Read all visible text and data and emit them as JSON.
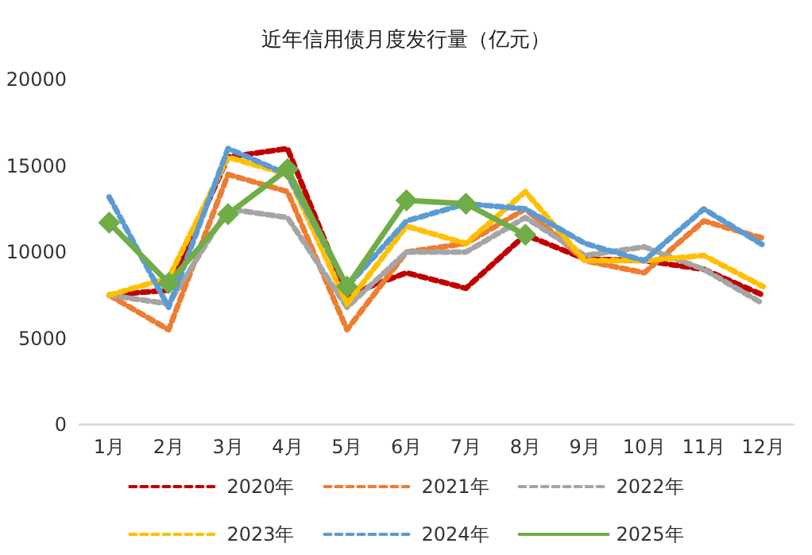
{
  "chart_data": {
    "type": "line",
    "title": "近年信用债月度发行量（亿元）",
    "categories": [
      "1月",
      "2月",
      "3月",
      "4月",
      "5月",
      "6月",
      "7月",
      "8月",
      "9月",
      "10月",
      "11月",
      "12月"
    ],
    "ylim": [
      0,
      20000
    ],
    "yticks": [
      0,
      5000,
      10000,
      15000,
      20000
    ],
    "grid": false,
    "legend": "bottom",
    "series": [
      {
        "name": "2020年",
        "color": "#c00000",
        "line_style": "dashed",
        "marker": "none",
        "values": [
          7500,
          7800,
          15500,
          16000,
          7500,
          8800,
          7900,
          11000,
          9600,
          9500,
          9000,
          7500
        ]
      },
      {
        "name": "2021年",
        "color": "#ed7d31",
        "line_style": "dashed",
        "marker": "none",
        "values": [
          7500,
          5500,
          14500,
          13500,
          5500,
          10000,
          10500,
          12500,
          9500,
          8800,
          11800,
          10800
        ]
      },
      {
        "name": "2022年",
        "color": "#a5a5a5",
        "line_style": "dashed",
        "marker": "none",
        "values": [
          7500,
          7000,
          12500,
          12000,
          6800,
          10000,
          10000,
          12000,
          9800,
          10300,
          9000,
          7000
        ]
      },
      {
        "name": "2023年",
        "color": "#ffc000",
        "line_style": "dashed",
        "marker": "none",
        "values": [
          7500,
          8500,
          15500,
          14500,
          7000,
          11500,
          10500,
          13500,
          9500,
          9500,
          9800,
          8000
        ]
      },
      {
        "name": "2024年",
        "color": "#5b9bd5",
        "line_style": "dashed",
        "marker": "none",
        "values": [
          13200,
          6800,
          16000,
          14500,
          8000,
          11800,
          12800,
          12500,
          10500,
          9500,
          12500,
          10400
        ]
      },
      {
        "name": "2025年",
        "color": "#70ad47",
        "line_style": "solid",
        "marker": "diamond",
        "values": [
          11700,
          8200,
          12200,
          14800,
          8000,
          13000,
          12800,
          11000,
          null,
          null,
          null,
          null
        ]
      }
    ]
  }
}
